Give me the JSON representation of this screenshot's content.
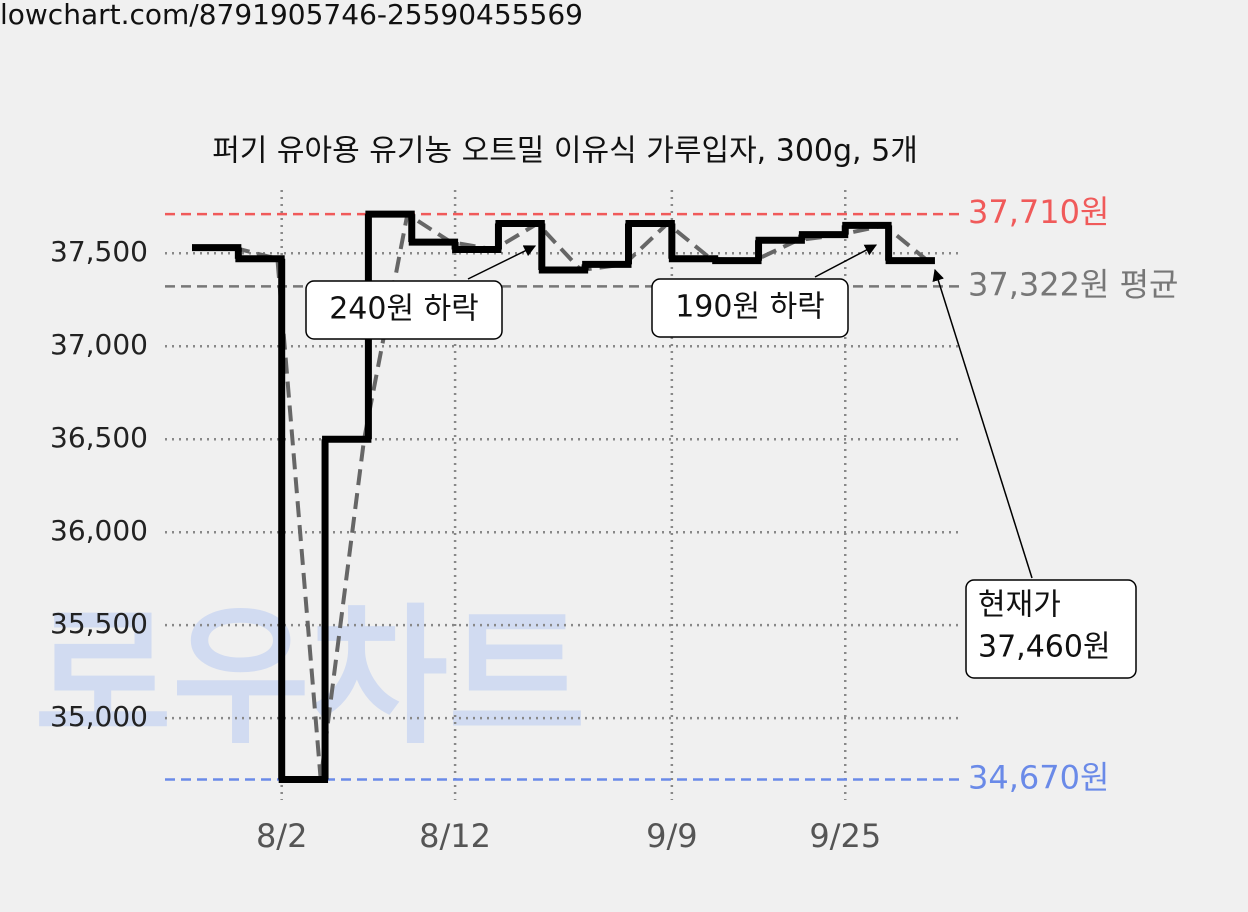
{
  "source": "lowchart.com/8791905746-25590455569",
  "chart_data": {
    "type": "step",
    "title": "퍼기 유아용 유기농 오트밀 이유식 가루입자, 300g, 5개",
    "watermark": "로우차트",
    "categories": [
      null,
      null,
      "8/2",
      null,
      null,
      null,
      "8/12",
      null,
      null,
      null,
      null,
      "9/9",
      null,
      null,
      null,
      "9/25",
      null
    ],
    "series": [
      {
        "color": "#000000",
        "trend_color": "#666666",
        "values": [
          37530,
          37470,
          34670,
          36500,
          37710,
          37560,
          37520,
          37660,
          37410,
          37440,
          37660,
          37470,
          37460,
          37570,
          37600,
          37650,
          37460
        ]
      }
    ],
    "ylim": [
      34560,
      37840
    ],
    "yticks": [
      {
        "value": 35000,
        "label": "35,000"
      },
      {
        "value": 35500,
        "label": "35,500"
      },
      {
        "value": 36000,
        "label": "36,000"
      },
      {
        "value": 36500,
        "label": "36,500"
      },
      {
        "value": 37000,
        "label": "37,000"
      },
      {
        "value": 37500,
        "label": "37,500"
      }
    ],
    "grid": true,
    "reference_lines": [
      {
        "value": 37710,
        "label": "37,710원",
        "color": "#f05a5a"
      },
      {
        "value": 37322,
        "label": "37,322원 평균",
        "color": "#777777"
      },
      {
        "value": 34670,
        "label": "34,670원",
        "color": "#6a8ae8"
      }
    ],
    "annotations": [
      {
        "text": "240원 하락"
      },
      {
        "text": "190원 하락"
      },
      {
        "text": "현재가"
      },
      {
        "text": "37,460원"
      }
    ]
  }
}
